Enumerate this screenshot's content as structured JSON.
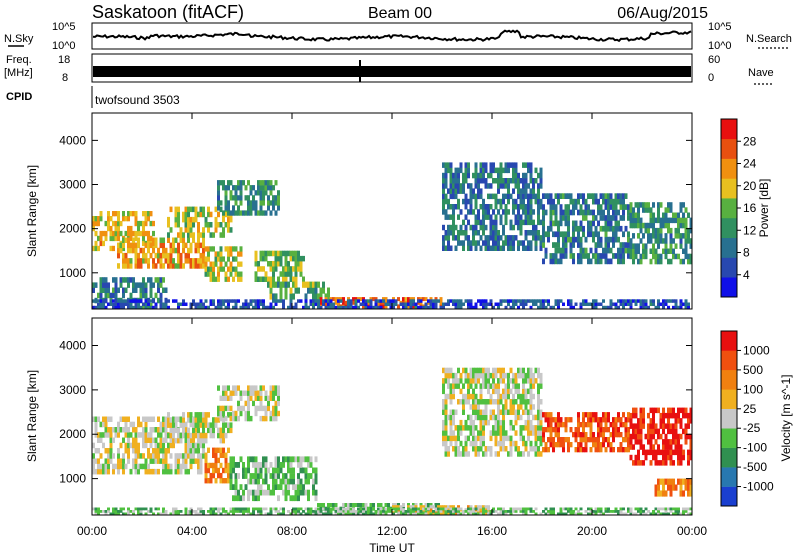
{
  "header": {
    "site": "Saskatoon (fitACF)",
    "beam": "Beam 00",
    "date": "06/Aug/2015"
  },
  "strips": {
    "nsky_label": "N.Sky",
    "nsearch_label": "N.Search",
    "nsky_ticks": [
      "10^5",
      "10^0"
    ],
    "nsearch_ticks": [
      "10^5",
      "10^0"
    ],
    "freq_label_1": "Freq.",
    "freq_label_2": "[MHz]",
    "freq_ticks": [
      "18",
      "8"
    ],
    "nave_label": "Nave",
    "nave_ticks": [
      "60",
      "0"
    ],
    "cpid_label": "CPID",
    "cpid_value": "twofsound 3503"
  },
  "chart_data": [
    {
      "type": "heatmap",
      "name": "power",
      "ylabel": "Slant Range [km]",
      "xlabel": "",
      "ylim": [
        180,
        4620
      ],
      "xlim": [
        0,
        24
      ],
      "y_ticks": [
        "1000",
        "2000",
        "3000",
        "4000"
      ],
      "x_ticks": [
        "00:00",
        "04:00",
        "08:00",
        "12:00",
        "16:00",
        "20:00",
        "00:00"
      ],
      "colorbar": {
        "label": "Power [dB]",
        "range": [
          0,
          32
        ],
        "ticks": [
          "4",
          "8",
          "12",
          "16",
          "20",
          "24",
          "28"
        ],
        "colors": [
          "#1010e8",
          "#2848b0",
          "#287090",
          "#309060",
          "#58b040",
          "#e8c020",
          "#f09010",
          "#e85010",
          "#e81010"
        ]
      },
      "bands": [
        {
          "t0": 0.0,
          "t1": 2.5,
          "r0": 1500,
          "r1": 2400,
          "val": 20
        },
        {
          "t0": 1.0,
          "t1": 4.5,
          "r0": 1100,
          "r1": 1800,
          "val": 22
        },
        {
          "t0": 3.0,
          "t1": 5.6,
          "r0": 1800,
          "r1": 2500,
          "val": 18
        },
        {
          "t0": 5.0,
          "t1": 7.5,
          "r0": 2300,
          "r1": 3100,
          "val": 12
        },
        {
          "t0": 4.5,
          "t1": 6.0,
          "r0": 800,
          "r1": 1600,
          "val": 18
        },
        {
          "t0": 0.0,
          "t1": 3.0,
          "r0": 200,
          "r1": 900,
          "val": 10
        },
        {
          "t0": 6.5,
          "t1": 8.5,
          "r0": 800,
          "r1": 1500,
          "val": 16
        },
        {
          "t0": 7.0,
          "t1": 9.5,
          "r0": 400,
          "r1": 800,
          "val": 14
        },
        {
          "t0": 9.0,
          "t1": 14.0,
          "r0": 200,
          "r1": 450,
          "val": 26
        },
        {
          "t0": 14.0,
          "t1": 18.0,
          "r0": 1500,
          "r1": 3500,
          "val": 9
        },
        {
          "t0": 18.0,
          "t1": 21.5,
          "r0": 1200,
          "r1": 2800,
          "val": 10
        },
        {
          "t0": 21.5,
          "t1": 24.0,
          "r0": 1200,
          "r1": 2600,
          "val": 12
        },
        {
          "t0": 0.0,
          "t1": 24.0,
          "r0": 180,
          "r1": 400,
          "val": 6
        }
      ]
    },
    {
      "type": "heatmap",
      "name": "velocity",
      "ylabel": "Slant Range [km]",
      "xlabel": "Time UT",
      "ylim": [
        180,
        4620
      ],
      "xlim": [
        0,
        24
      ],
      "y_ticks": [
        "1000",
        "2000",
        "3000",
        "4000"
      ],
      "x_ticks": [
        "00:00",
        "04:00",
        "08:00",
        "12:00",
        "16:00",
        "20:00",
        "00:00"
      ],
      "colorbar": {
        "label": "Velocity [m s^-1]",
        "ticks": [
          "1000",
          "500",
          "100",
          "25",
          "-25",
          "-100",
          "-500",
          "-1000"
        ],
        "colors": [
          "#1a3fd0",
          "#2878b0",
          "#309050",
          "#50c040",
          "#c8c8c8",
          "#f0b020",
          "#f08010",
          "#f05010",
          "#e81010"
        ]
      },
      "bands": [
        {
          "t0": 0.0,
          "t1": 4.5,
          "r0": 1100,
          "r1": 2400,
          "val": 4
        },
        {
          "t0": 3.0,
          "t1": 5.6,
          "r0": 1800,
          "r1": 2500,
          "val": 4
        },
        {
          "t0": 4.5,
          "t1": 5.5,
          "r0": 900,
          "r1": 1700,
          "val": 6
        },
        {
          "t0": 5.0,
          "t1": 7.5,
          "r0": 2300,
          "r1": 3100,
          "val": 4
        },
        {
          "t0": 5.5,
          "t1": 9.0,
          "r0": 500,
          "r1": 1500,
          "val": 3
        },
        {
          "t0": 9.0,
          "t1": 14.0,
          "r0": 200,
          "r1": 450,
          "val": 3
        },
        {
          "t0": 12.0,
          "t1": 16.0,
          "r0": 200,
          "r1": 400,
          "val": 5
        },
        {
          "t0": 14.0,
          "t1": 18.0,
          "r0": 1500,
          "r1": 3500,
          "val": 4
        },
        {
          "t0": 18.0,
          "t1": 21.5,
          "r0": 1600,
          "r1": 2500,
          "val": 7
        },
        {
          "t0": 21.5,
          "t1": 24.0,
          "r0": 1300,
          "r1": 2600,
          "val": 8
        },
        {
          "t0": 22.5,
          "t1": 24.0,
          "r0": 600,
          "r1": 1000,
          "val": 6
        },
        {
          "t0": 0.0,
          "t1": 24.0,
          "r0": 180,
          "r1": 350,
          "val": 3
        }
      ]
    }
  ]
}
